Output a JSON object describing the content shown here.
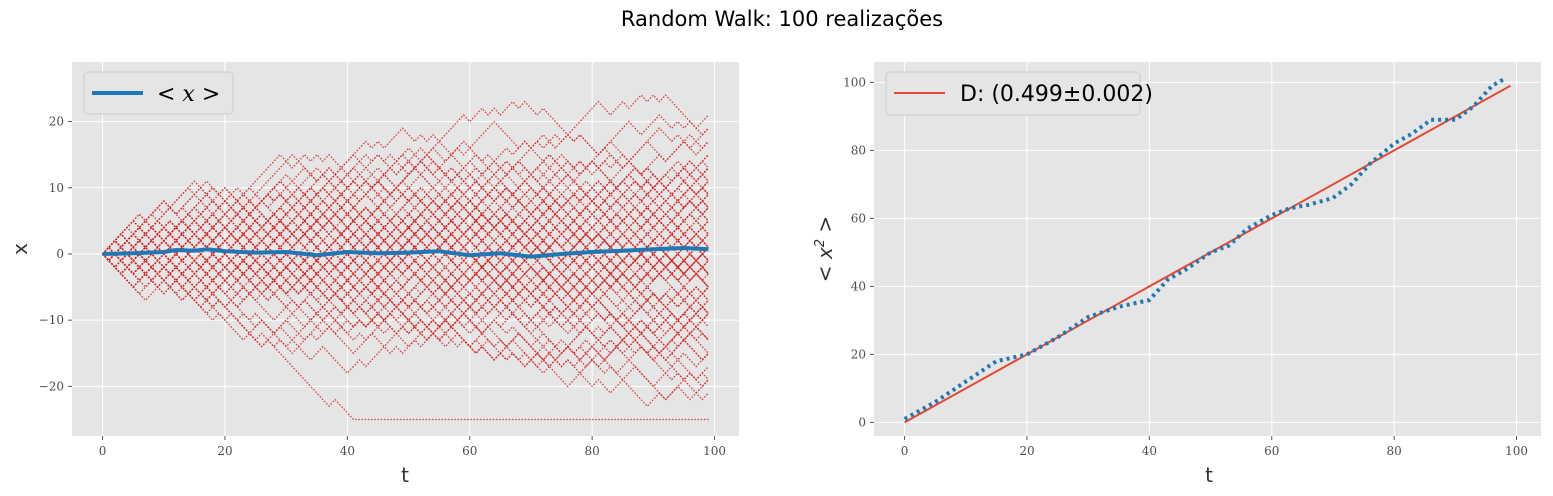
{
  "title": "Random Walk: 100 realizações",
  "colors": {
    "axes_bg": "#e5e5e5",
    "grid": "#ffffff",
    "walk": "#d62728",
    "mean": "#1f77b4",
    "fit": "#e24a33"
  },
  "chart_data": [
    {
      "type": "line",
      "xlabel": "t",
      "ylabel": "x",
      "xlim": [
        -5,
        104
      ],
      "ylim": [
        -27.5,
        29
      ],
      "xticks": [
        0,
        20,
        40,
        60,
        80,
        100
      ],
      "yticks": [
        -20,
        -10,
        0,
        10,
        20
      ],
      "x_tick_labels": [
        "0",
        "20",
        "40",
        "60",
        "80",
        "100"
      ],
      "y_tick_labels": [
        "−20",
        "−10",
        "0",
        "10",
        "20"
      ],
      "grid": true,
      "legend_position": "top-left",
      "legend": [
        "< x >"
      ],
      "realizations": 100,
      "steps": 100,
      "series": [
        {
          "name": "< x >",
          "style": "solid",
          "x": [
            0,
            5,
            10,
            12,
            15,
            17,
            20,
            25,
            30,
            35,
            40,
            45,
            50,
            55,
            60,
            65,
            70,
            75,
            80,
            85,
            90,
            95,
            99
          ],
          "values": [
            0,
            0.1,
            0.3,
            0.6,
            0.5,
            0.7,
            0.4,
            0.2,
            0.3,
            -0.2,
            0.3,
            0.1,
            0.2,
            0.4,
            -0.2,
            0.1,
            -0.4,
            0.0,
            0.3,
            0.5,
            0.7,
            0.9,
            0.7
          ]
        }
      ]
    },
    {
      "type": "line",
      "xlabel": "t",
      "ylabel": "< x^2 >",
      "xlim": [
        -5,
        104
      ],
      "ylim": [
        -4,
        106
      ],
      "xticks": [
        0,
        20,
        40,
        60,
        80,
        100
      ],
      "yticks": [
        0,
        20,
        40,
        60,
        80,
        100
      ],
      "x_tick_labels": [
        "0",
        "20",
        "40",
        "60",
        "80",
        "100"
      ],
      "y_tick_labels": [
        "0",
        "20",
        "40",
        "60",
        "80",
        "100"
      ],
      "grid": true,
      "legend_position": "top-left",
      "legend": [
        "D: (0.499±0.002)"
      ],
      "series": [
        {
          "name": "D: (0.499±0.002)",
          "style": "solid",
          "x": [
            0,
            99
          ],
          "values": [
            0,
            99
          ]
        },
        {
          "style": "dotted",
          "x": [
            0,
            5,
            10,
            15,
            20,
            25,
            30,
            35,
            40,
            43,
            46,
            50,
            53,
            56,
            60,
            63,
            66,
            70,
            73,
            76,
            80,
            83,
            86,
            90,
            93,
            96,
            98
          ],
          "values": [
            1,
            6,
            12,
            18,
            20,
            25,
            31,
            34,
            36,
            42,
            45,
            50,
            52,
            57,
            61,
            63,
            64,
            66,
            70,
            76,
            82,
            85,
            89,
            89,
            93,
            99,
            101
          ]
        }
      ]
    }
  ]
}
